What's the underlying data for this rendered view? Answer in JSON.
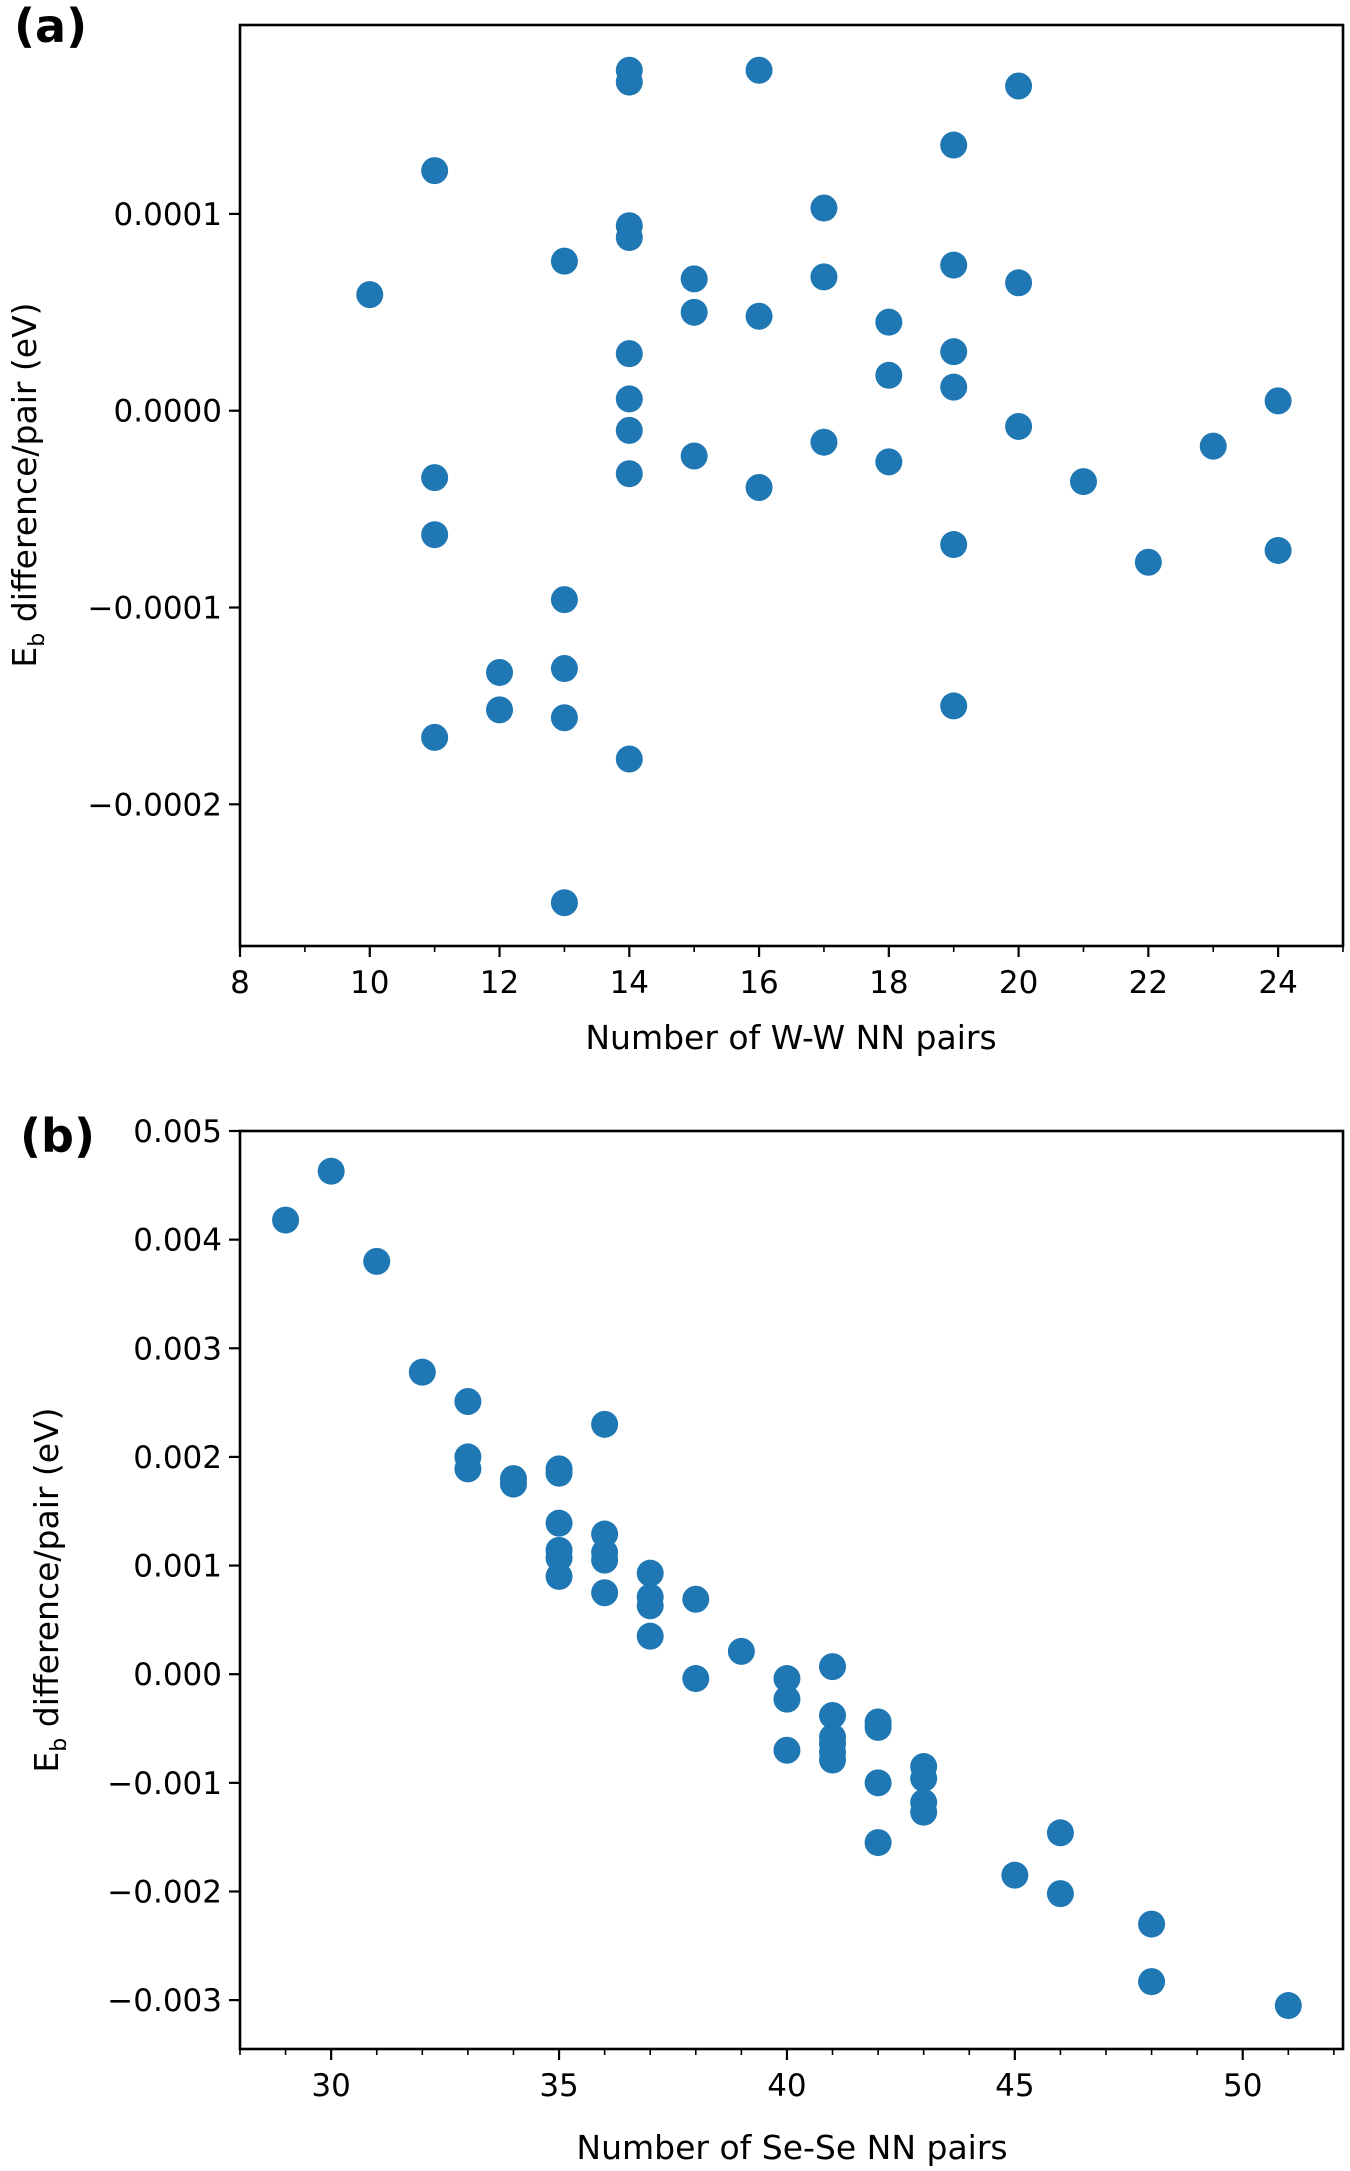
{
  "colors": {
    "points": "#1f77b4",
    "axes": "#000000"
  },
  "chart_data": [
    {
      "type": "scatter",
      "panel_label": "(a)",
      "xlabel": "Number of W-W NN pairs",
      "ylabel_main": "E",
      "ylabel_sub": "b",
      "ylabel_rest": " difference/pair (eV)",
      "xlim": [
        8,
        25
      ],
      "ylim": [
        -0.000272,
        0.000196
      ],
      "x_ticks": [
        8,
        10,
        12,
        14,
        16,
        18,
        20,
        22,
        24
      ],
      "x_minor_ticks": [
        9,
        11,
        13,
        15,
        17,
        19,
        21,
        23,
        25
      ],
      "y_ticks": [
        0.0001,
        0.0,
        -0.0001,
        -0.0002
      ],
      "y_tick_labels": [
        "0.0001",
        "0.0000",
        "−0.0001",
        "−0.0002"
      ],
      "grid": false,
      "points": [
        [
          10,
          5.9e-05
        ],
        [
          11,
          0.000122
        ],
        [
          11,
          -3.4e-05
        ],
        [
          11,
          -6.3e-05
        ],
        [
          11,
          -0.000166
        ],
        [
          12,
          -0.000133
        ],
        [
          12,
          -0.000152
        ],
        [
          13,
          7.6e-05
        ],
        [
          13,
          -9.6e-05
        ],
        [
          13,
          -0.000131
        ],
        [
          13,
          -0.000156
        ],
        [
          13,
          -0.00025
        ],
        [
          14,
          0.000173
        ],
        [
          14,
          0.000167
        ],
        [
          14,
          9.4e-05
        ],
        [
          14,
          8.8e-05
        ],
        [
          14,
          2.9e-05
        ],
        [
          14,
          6e-06
        ],
        [
          14,
          -1e-05
        ],
        [
          14,
          -3.2e-05
        ],
        [
          14,
          -0.000177
        ],
        [
          15,
          6.7e-05
        ],
        [
          15,
          5e-05
        ],
        [
          15,
          -2.3e-05
        ],
        [
          16,
          0.000173
        ],
        [
          16,
          4.8e-05
        ],
        [
          16,
          -3.9e-05
        ],
        [
          17,
          0.000103
        ],
        [
          17,
          6.8e-05
        ],
        [
          17,
          -1.6e-05
        ],
        [
          18,
          4.5e-05
        ],
        [
          18,
          1.8e-05
        ],
        [
          18,
          -2.6e-05
        ],
        [
          19,
          0.000135
        ],
        [
          19,
          7.4e-05
        ],
        [
          19,
          3e-05
        ],
        [
          19,
          1.2e-05
        ],
        [
          19,
          -6.8e-05
        ],
        [
          19,
          -0.00015
        ],
        [
          20,
          0.000165
        ],
        [
          20,
          6.5e-05
        ],
        [
          20,
          -8e-06
        ],
        [
          21,
          -3.6e-05
        ],
        [
          22,
          -7.7e-05
        ],
        [
          23,
          -1.8e-05
        ],
        [
          24,
          5e-06
        ],
        [
          24,
          -7.1e-05
        ]
      ]
    },
    {
      "type": "scatter",
      "panel_label": "(b)",
      "xlabel": "Number of Se-Se NN pairs",
      "ylabel_main": "E",
      "ylabel_sub": "b",
      "ylabel_rest": " difference/pair (eV)",
      "xlim": [
        28,
        52.2
      ],
      "ylim": [
        -0.00345,
        0.005
      ],
      "x_ticks": [
        30,
        35,
        40,
        45,
        50
      ],
      "x_minor_ticks": [
        28,
        29,
        31,
        32,
        33,
        34,
        36,
        37,
        38,
        39,
        41,
        42,
        43,
        44,
        46,
        47,
        48,
        49,
        51,
        52
      ],
      "y_ticks": [
        0.005,
        0.004,
        0.003,
        0.002,
        0.001,
        0.0,
        -0.001,
        -0.002,
        -0.003
      ],
      "y_tick_labels": [
        "0.005",
        "0.004",
        "0.003",
        "0.002",
        "0.001",
        "0.000",
        "−0.001",
        "−0.002",
        "−0.003"
      ],
      "grid": false,
      "points": [
        [
          29,
          0.00418
        ],
        [
          30,
          0.00463
        ],
        [
          31,
          0.0038
        ],
        [
          32,
          0.00278
        ],
        [
          33,
          0.00251
        ],
        [
          33,
          0.002
        ],
        [
          33,
          0.00189
        ],
        [
          34,
          0.0018
        ],
        [
          34,
          0.00175
        ],
        [
          35,
          0.00189
        ],
        [
          35,
          0.00185
        ],
        [
          35,
          0.00139
        ],
        [
          35,
          0.00114
        ],
        [
          35,
          0.00107
        ],
        [
          35,
          0.0009
        ],
        [
          36,
          0.0023
        ],
        [
          36,
          0.00129
        ],
        [
          36,
          0.00112
        ],
        [
          36,
          0.00105
        ],
        [
          36,
          0.00075
        ],
        [
          37,
          0.00093
        ],
        [
          37,
          0.00071
        ],
        [
          37,
          0.00063
        ],
        [
          37,
          0.00035
        ],
        [
          38,
          0.00069
        ],
        [
          38,
          -4e-05
        ],
        [
          39,
          0.00021
        ],
        [
          40,
          -4e-05
        ],
        [
          40,
          -0.00023
        ],
        [
          40,
          -0.0007
        ],
        [
          41,
          7e-05
        ],
        [
          41,
          -0.00038
        ],
        [
          41,
          -0.00058
        ],
        [
          41,
          -0.00064
        ],
        [
          41,
          -0.00072
        ],
        [
          41,
          -0.00079
        ],
        [
          42,
          -0.00044
        ],
        [
          42,
          -0.00049
        ],
        [
          42,
          -0.001
        ],
        [
          42,
          -0.00155
        ],
        [
          43,
          -0.00085
        ],
        [
          43,
          -0.00096
        ],
        [
          43,
          -0.00118
        ],
        [
          43,
          -0.00127
        ],
        [
          45,
          -0.00185
        ],
        [
          46,
          -0.00146
        ],
        [
          46,
          -0.00202
        ],
        [
          48,
          -0.0023
        ],
        [
          48,
          -0.00283
        ],
        [
          51,
          -0.00305
        ]
      ]
    }
  ]
}
